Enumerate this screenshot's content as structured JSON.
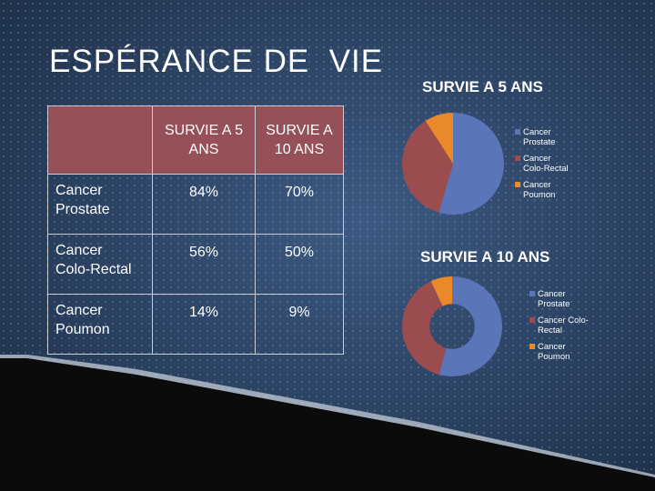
{
  "title": "ESPÉRANCE DE  VIE",
  "table": {
    "header": [
      "",
      "SURVIE A 5 ANS",
      "SURVIE A 10 ANS"
    ],
    "rows": [
      {
        "label": "Cancer\nProstate",
        "five": "84%",
        "ten": "70%"
      },
      {
        "label": "Cancer\nColo-Rectal",
        "five": "56%",
        "ten": "50%"
      },
      {
        "label": "Cancer\nPoumon",
        "five": "14%",
        "ten": "9%"
      }
    ]
  },
  "colors": {
    "background": "#2d4566",
    "header_fill": "#955058",
    "prostate": "#5a76b8",
    "colorectal": "#9a4c4e",
    "poumon": "#e9892a"
  },
  "chart_data": [
    {
      "type": "pie",
      "title": "SURVIE A 5 ANS",
      "categories": [
        "Cancer\nProstate",
        "Cancer\nColo-Rectal",
        "Cancer\nPoumon"
      ],
      "values": [
        84,
        56,
        14
      ],
      "legend": "right"
    },
    {
      "type": "pie",
      "variant": "donut",
      "title": "SURVIE A 10 ANS",
      "categories": [
        "Cancer\nProstate",
        "Cancer Colo-\nRectal",
        "Cancer\nPoumon"
      ],
      "values": [
        70,
        50,
        9
      ],
      "legend": "right"
    }
  ]
}
